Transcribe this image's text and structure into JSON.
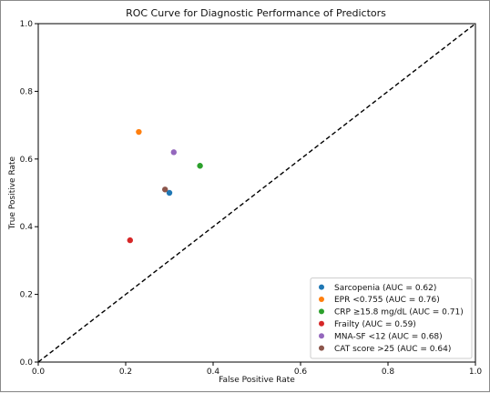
{
  "chart_data": {
    "type": "scatter",
    "title": "ROC Curve for Diagnostic Performance of Predictors",
    "xlabel": "False Positive Rate",
    "ylabel": "True Positive Rate",
    "xlim": [
      0.0,
      1.0
    ],
    "ylim": [
      0.0,
      1.0
    ],
    "xticks": [
      "0.0",
      "0.2",
      "0.4",
      "0.6",
      "0.8",
      "1.0"
    ],
    "yticks": [
      "0.0",
      "0.2",
      "0.4",
      "0.6",
      "0.8",
      "1.0"
    ],
    "grid": false,
    "legend_position": "lower-right",
    "reference_line": {
      "style": "dashed",
      "color": "#000000",
      "from": [
        0,
        0
      ],
      "to": [
        1,
        1
      ]
    },
    "series": [
      {
        "name": "Sarcopenia (AUC = 0.62)",
        "color": "#1f77b4",
        "x": 0.3,
        "y": 0.5
      },
      {
        "name": "EPR <0.755 (AUC = 0.76)",
        "color": "#ff7f0e",
        "x": 0.23,
        "y": 0.68
      },
      {
        "name": "CRP ≥15.8 mg/dL (AUC = 0.71)",
        "color": "#2ca02c",
        "x": 0.37,
        "y": 0.58
      },
      {
        "name": "Frailty (AUC = 0.59)",
        "color": "#d62728",
        "x": 0.21,
        "y": 0.36
      },
      {
        "name": "MNA-SF <12 (AUC = 0.68)",
        "color": "#9467bd",
        "x": 0.31,
        "y": 0.62
      },
      {
        "name": "CAT score >25 (AUC = 0.64)",
        "color": "#8c564b",
        "x": 0.29,
        "y": 0.51
      }
    ]
  }
}
